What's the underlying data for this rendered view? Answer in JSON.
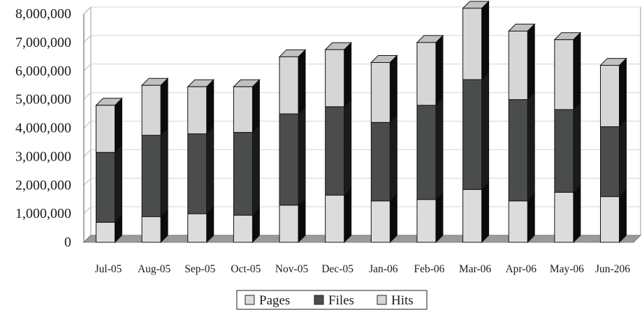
{
  "chart_data": {
    "type": "bar",
    "stacked": true,
    "three_d": true,
    "categories": [
      "Jul-05",
      "Aug-05",
      "Sep-05",
      "Oct-05",
      "Nov-05",
      "Dec-05",
      "Jan-06",
      "Feb-06",
      "Mar-06",
      "Apr-06",
      "May-06",
      "Jun-206"
    ],
    "series": [
      {
        "name": "Pages",
        "color": "#dcdcdc",
        "values": [
          700000,
          900000,
          1000000,
          950000,
          1300000,
          1650000,
          1450000,
          1500000,
          1850000,
          1450000,
          1750000,
          1600000
        ]
      },
      {
        "name": "Files",
        "color": "#4a4d4c",
        "values": [
          2450000,
          2850000,
          2800000,
          2900000,
          3200000,
          3100000,
          2750000,
          3300000,
          3850000,
          3550000,
          2900000,
          2450000
        ]
      },
      {
        "name": "Hits",
        "color": "#d6d6d6",
        "values": [
          1650000,
          1750000,
          1650000,
          1600000,
          2000000,
          2000000,
          2100000,
          2200000,
          2500000,
          2400000,
          2450000,
          2150000
        ]
      }
    ],
    "y_ticks": [
      "0",
      "1,000,000",
      "2,000,000",
      "3,000,000",
      "4,000,000",
      "5,000,000",
      "6,000,000",
      "7,000,000",
      "8,000,000"
    ],
    "ylim": [
      0,
      8000000
    ],
    "grid": true,
    "legend_position": "bottom-center",
    "title": "",
    "xlabel": "",
    "ylabel": ""
  }
}
